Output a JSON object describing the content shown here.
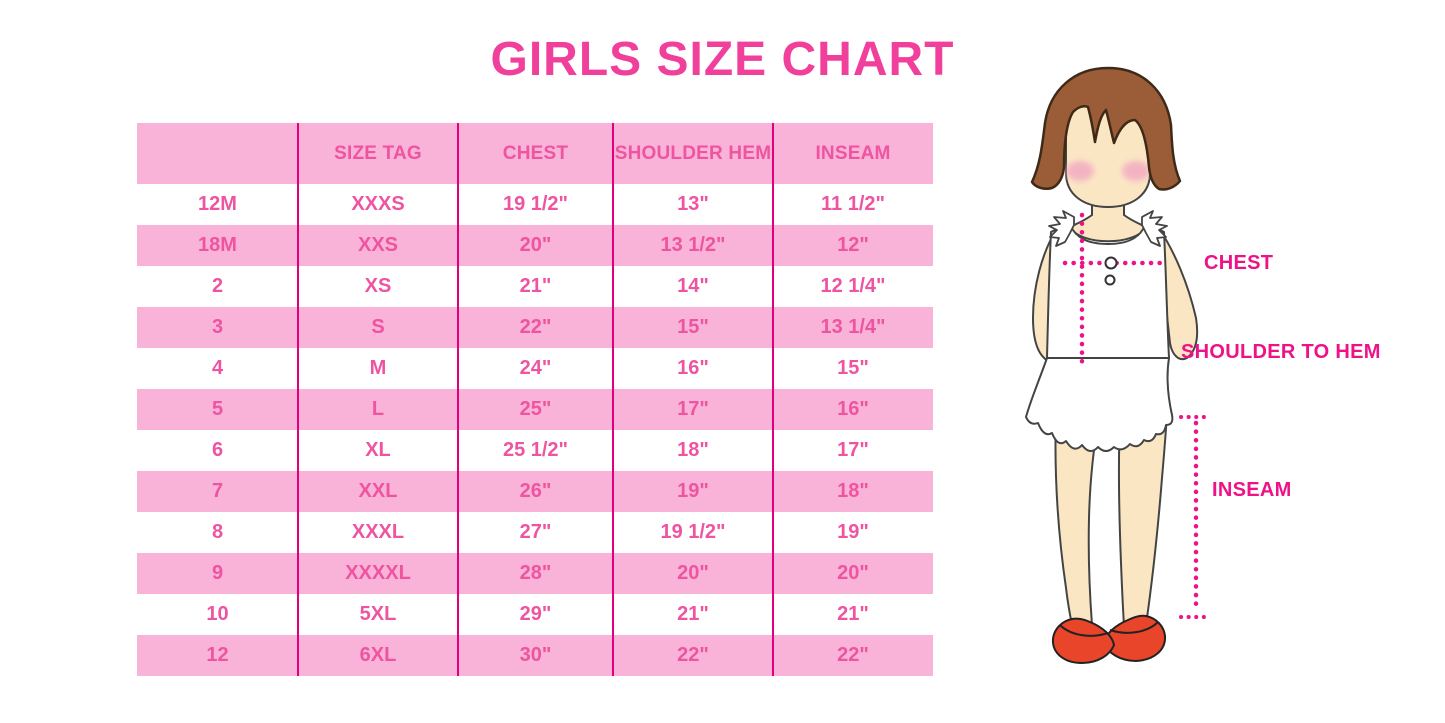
{
  "title": "GIRLS SIZE CHART",
  "table": {
    "headers": [
      "",
      "SIZE TAG",
      "CHEST",
      "SHOULDER HEM",
      "INSEAM"
    ],
    "rows": [
      [
        "12M",
        "XXXS",
        "19 1/2\"",
        "13\"",
        "11 1/2\""
      ],
      [
        "18M",
        "XXS",
        "20\"",
        "13 1/2\"",
        "12\""
      ],
      [
        "2",
        "XS",
        "21\"",
        "14\"",
        "12 1/4\""
      ],
      [
        "3",
        "S",
        "22\"",
        "15\"",
        "13 1/4\""
      ],
      [
        "4",
        "M",
        "24\"",
        "16\"",
        "15\""
      ],
      [
        "5",
        "L",
        "25\"",
        "17\"",
        "16\""
      ],
      [
        "6",
        "XL",
        "25 1/2\"",
        "18\"",
        "17\""
      ],
      [
        "7",
        "XXL",
        "26\"",
        "19\"",
        "18\""
      ],
      [
        "8",
        "XXXL",
        "27\"",
        "19 1/2\"",
        "19\""
      ],
      [
        "9",
        "XXXXL",
        "28\"",
        "20\"",
        "20\""
      ],
      [
        "10",
        "5XL",
        "29\"",
        "21\"",
        "21\""
      ],
      [
        "12",
        "6XL",
        "30\"",
        "22\"",
        "22\""
      ]
    ]
  },
  "figure_labels": {
    "chest": "CHEST",
    "shoulder_to_hem": "SHOULDER TO HEM",
    "inseam": "INSEAM"
  },
  "colors": {
    "title": "#f0409c",
    "row_pink": "#f9b2d8",
    "table_text": "#ee54a0",
    "divider": "#e0007e",
    "measure": "#ee1289",
    "hair": "#9b5c38",
    "skin": "#fbe6c4",
    "shoe": "#e8452b"
  }
}
